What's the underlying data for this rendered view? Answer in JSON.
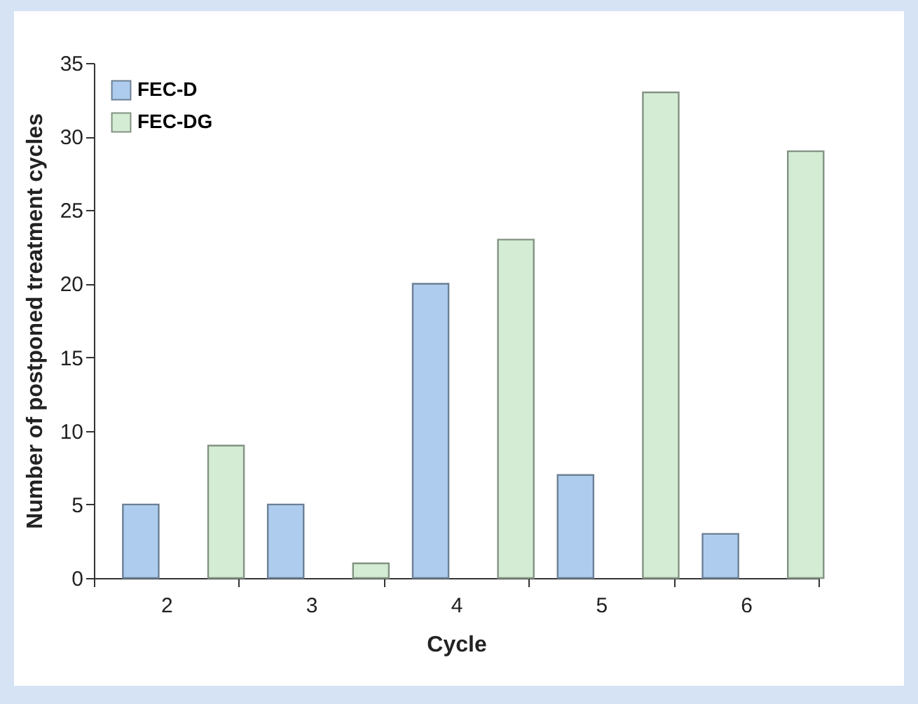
{
  "chart_data": {
    "type": "bar",
    "xlabel": "Cycle",
    "ylabel": "Number of postponed treatment cycles",
    "categories": [
      "2",
      "3",
      "4",
      "5",
      "6"
    ],
    "series": [
      {
        "name": "FEC-D",
        "color": "#aecdee",
        "values": [
          5,
          5,
          20,
          7,
          3
        ]
      },
      {
        "name": "FEC-DG",
        "color": "#d3ecd3",
        "values": [
          9,
          1,
          23,
          33,
          29
        ]
      }
    ],
    "ylim": [
      0,
      35
    ],
    "yticks": [
      0,
      5,
      10,
      15,
      20,
      25,
      30,
      35
    ],
    "grid": false,
    "legend": "top left"
  }
}
